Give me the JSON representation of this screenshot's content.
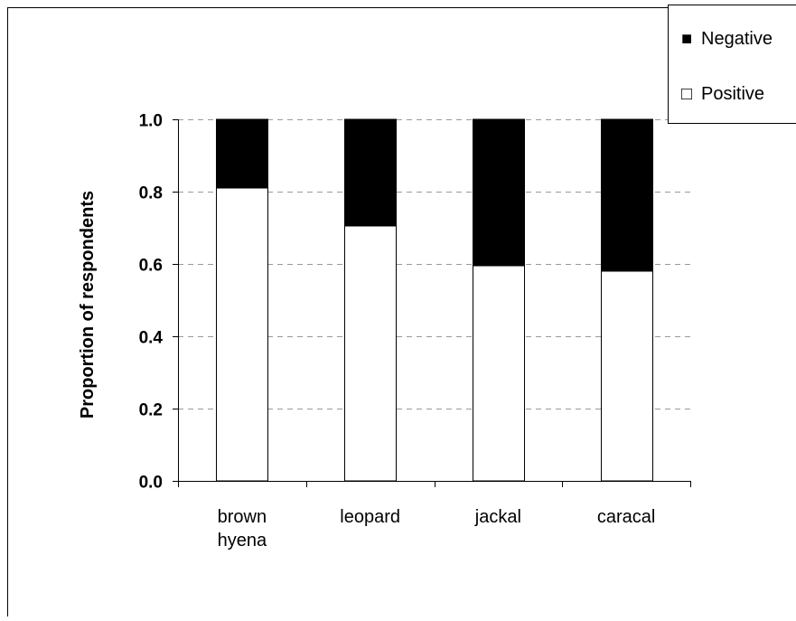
{
  "chart_data": {
    "type": "bar",
    "stacked": true,
    "categories": [
      [
        "brown",
        "hyena"
      ],
      [
        "leopard"
      ],
      [
        "jackal"
      ],
      [
        "caracal"
      ]
    ],
    "series": [
      {
        "name": "Positive",
        "values": [
          0.81,
          0.705,
          0.595,
          0.58
        ],
        "color": "#ffffff"
      },
      {
        "name": "Negative",
        "values": [
          0.19,
          0.295,
          0.405,
          0.42
        ],
        "color": "#000000"
      }
    ],
    "title": "",
    "xlabel": "",
    "ylabel": "Proportion of respondents",
    "ylim": [
      0,
      1.0
    ],
    "yticks": [
      "0.0",
      "0.2",
      "0.4",
      "0.6",
      "0.8",
      "1.0"
    ],
    "grid": "horizontal dashed",
    "legend": {
      "placement": "top-right",
      "entries": [
        {
          "marker": "■",
          "label": "Negative"
        },
        {
          "marker": "□",
          "label": "Positive"
        }
      ]
    }
  }
}
